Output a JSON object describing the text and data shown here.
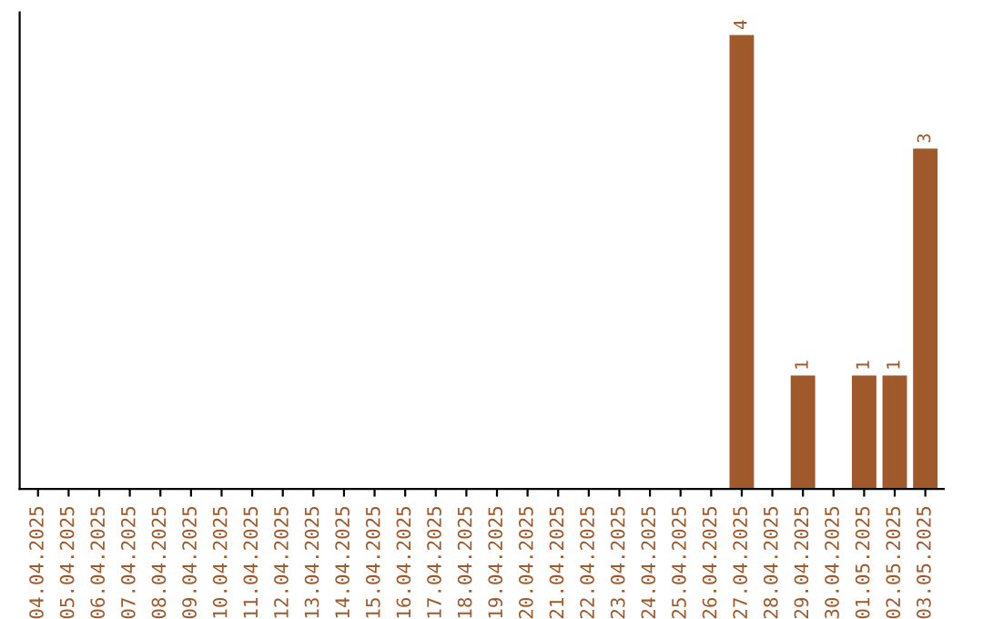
{
  "chart_data": {
    "type": "bar",
    "categories": [
      "04.04.2025",
      "05.04.2025",
      "06.04.2025",
      "07.04.2025",
      "08.04.2025",
      "09.04.2025",
      "10.04.2025",
      "11.04.2025",
      "12.04.2025",
      "13.04.2025",
      "14.04.2025",
      "15.04.2025",
      "16.04.2025",
      "17.04.2025",
      "18.04.2025",
      "19.04.2025",
      "20.04.2025",
      "21.04.2025",
      "22.04.2025",
      "23.04.2025",
      "24.04.2025",
      "25.04.2025",
      "26.04.2025",
      "27.04.2025",
      "28.04.2025",
      "29.04.2025",
      "30.04.2025",
      "01.05.2025",
      "02.05.2025",
      "03.05.2025"
    ],
    "values": [
      null,
      null,
      null,
      null,
      null,
      null,
      null,
      null,
      null,
      null,
      null,
      null,
      null,
      null,
      null,
      null,
      null,
      null,
      null,
      null,
      null,
      null,
      null,
      4,
      null,
      1,
      null,
      1,
      1,
      3
    ],
    "value_labels": [
      null,
      null,
      null,
      null,
      null,
      null,
      null,
      null,
      null,
      null,
      null,
      null,
      null,
      null,
      null,
      null,
      null,
      null,
      null,
      null,
      null,
      null,
      null,
      "4",
      null,
      "1",
      null,
      "1",
      "1",
      "3"
    ],
    "color": "#a0592a",
    "tick_labels": "x",
    "grid": false,
    "legend": false
  }
}
